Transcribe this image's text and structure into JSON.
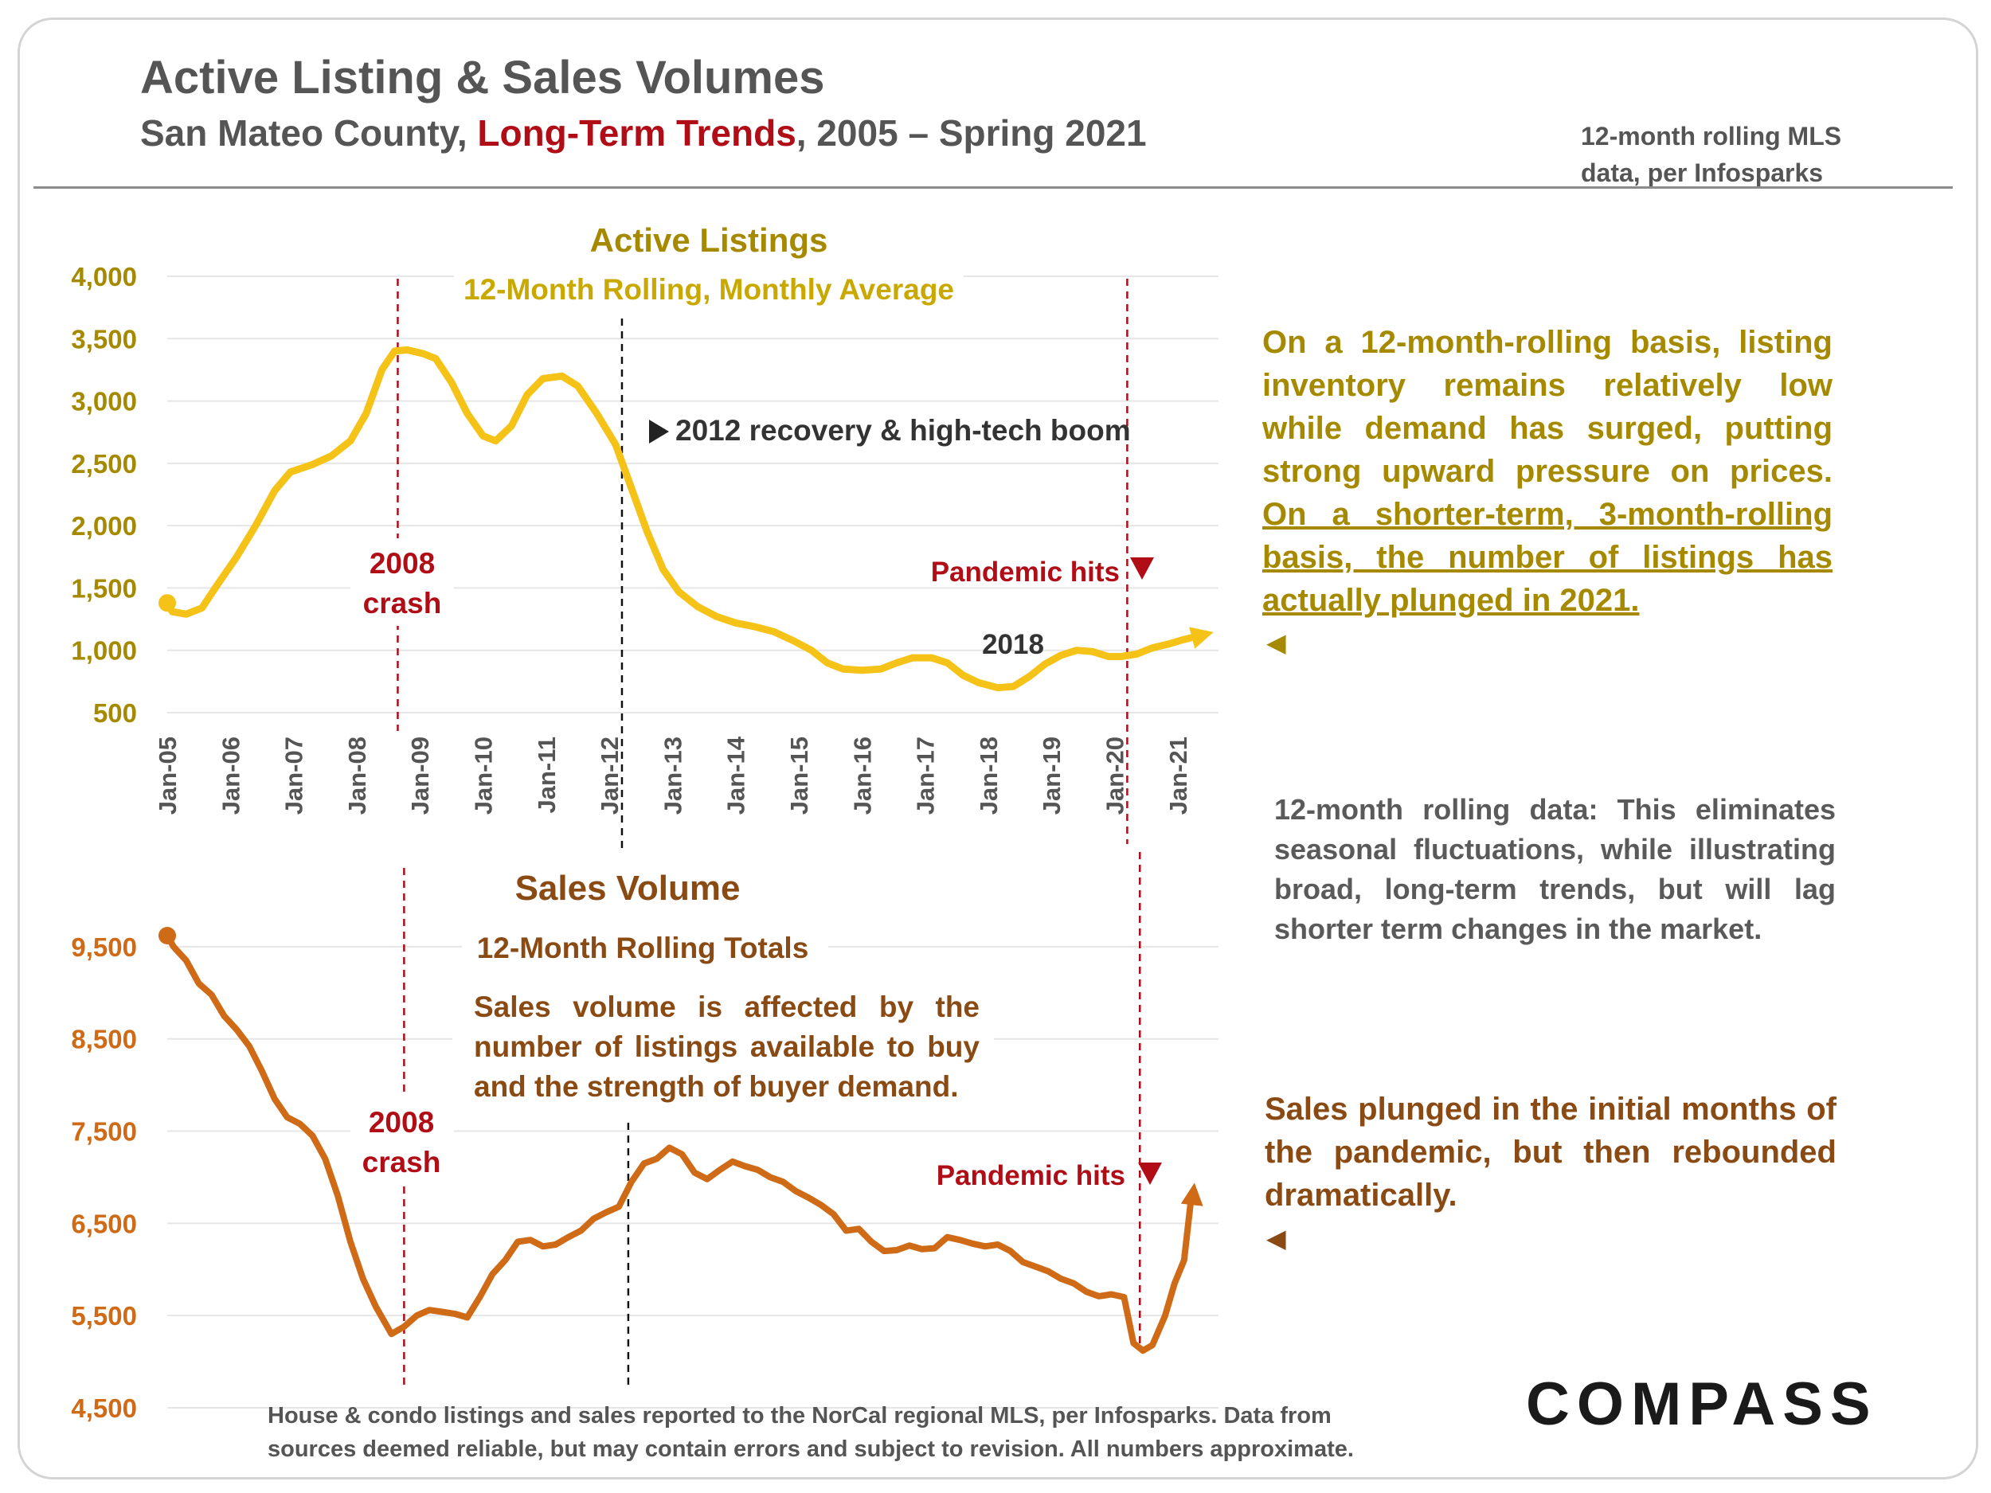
{
  "header": {
    "title": "Active Listing & Sales Volumes",
    "subtitle_pre": "San Mateo County, ",
    "subtitle_highlight": "Long-Term Trends",
    "subtitle_post": ", 2005 – Spring 2021",
    "source_note_line1": "12-month rolling MLS",
    "source_note_line2": "data, per Infosparks"
  },
  "notes": {
    "listings_plain": "On a 12-month-rolling basis, listing inventory remains relatively low while demand has surged, putting strong upward pressure on prices. ",
    "listings_underlined": "On a shorter-term, 3-month-rolling basis, the number of listings has actually plunged in 2021.",
    "rolling_data": "12-month rolling data: This eliminates seasonal fluctuations, while illustrating broad, long-term trends, but will lag shorter term changes in the market.",
    "sales": "Sales plunged in the initial months of the pandemic, but then rebounded dramatically.",
    "sales_explainer": "Sales volume is affected by the number of listings available to buy and the strength of buyer demand.",
    "footer": "House & condo listings and sales reported to the NorCal regional MLS, per Infosparks. Data from sources deemed reliable, but may contain errors and subject to revision. All numbers approximate."
  },
  "logo": {
    "text": "COMPASS"
  },
  "colors": {
    "listings_line": "#f5c218",
    "sales_line": "#cf6a17",
    "listings_text": "#a58a00",
    "sales_text": "#8a4a14",
    "crash_red": "#b00d17",
    "header_gray": "#555555"
  },
  "chart_data": [
    {
      "type": "line",
      "title": "Active Listings",
      "subtitle": "12-Month Rolling, Monthly Average",
      "series_name": "Active Listings",
      "ylim": [
        500,
        4000
      ],
      "yticks": [
        500,
        1000,
        1500,
        2000,
        2500,
        3000,
        3500,
        4000
      ],
      "ytick_labels": [
        "500",
        "1,000",
        "1,500",
        "2,000",
        "2,500",
        "3,000",
        "3,500",
        "4,000"
      ],
      "x_labels": [
        "Jan-05",
        "Jan-06",
        "Jan-07",
        "Jan-08",
        "Jan-09",
        "Jan-10",
        "Jan-11",
        "Jan-12",
        "Jan-13",
        "Jan-14",
        "Jan-15",
        "Jan-16",
        "Jan-17",
        "Jan-18",
        "Jan-19",
        "Jan-20",
        "Jan-21"
      ],
      "xlim": [
        2005.0,
        2021.33
      ],
      "points": [
        [
          2005.0,
          1380
        ],
        [
          2005.08,
          1310
        ],
        [
          2005.3,
          1290
        ],
        [
          2005.55,
          1340
        ],
        [
          2005.8,
          1530
        ],
        [
          2006.1,
          1750
        ],
        [
          2006.4,
          2000
        ],
        [
          2006.7,
          2280
        ],
        [
          2006.95,
          2430
        ],
        [
          2007.3,
          2490
        ],
        [
          2007.6,
          2560
        ],
        [
          2007.9,
          2680
        ],
        [
          2008.15,
          2900
        ],
        [
          2008.4,
          3250
        ],
        [
          2008.6,
          3400
        ],
        [
          2008.8,
          3410
        ],
        [
          2009.05,
          3380
        ],
        [
          2009.25,
          3340
        ],
        [
          2009.5,
          3150
        ],
        [
          2009.75,
          2900
        ],
        [
          2010.0,
          2720
        ],
        [
          2010.2,
          2680
        ],
        [
          2010.45,
          2800
        ],
        [
          2010.7,
          3050
        ],
        [
          2010.95,
          3180
        ],
        [
          2011.25,
          3200
        ],
        [
          2011.5,
          3120
        ],
        [
          2011.8,
          2900
        ],
        [
          2012.1,
          2650
        ],
        [
          2012.35,
          2300
        ],
        [
          2012.6,
          1950
        ],
        [
          2012.85,
          1650
        ],
        [
          2013.1,
          1470
        ],
        [
          2013.4,
          1350
        ],
        [
          2013.7,
          1270
        ],
        [
          2014.0,
          1220
        ],
        [
          2014.3,
          1190
        ],
        [
          2014.6,
          1150
        ],
        [
          2014.9,
          1080
        ],
        [
          2015.2,
          1000
        ],
        [
          2015.45,
          900
        ],
        [
          2015.7,
          850
        ],
        [
          2016.0,
          840
        ],
        [
          2016.3,
          850
        ],
        [
          2016.55,
          900
        ],
        [
          2016.8,
          940
        ],
        [
          2017.1,
          940
        ],
        [
          2017.35,
          900
        ],
        [
          2017.6,
          800
        ],
        [
          2017.85,
          740
        ],
        [
          2018.15,
          700
        ],
        [
          2018.4,
          710
        ],
        [
          2018.65,
          790
        ],
        [
          2018.9,
          890
        ],
        [
          2019.15,
          960
        ],
        [
          2019.4,
          1000
        ],
        [
          2019.65,
          990
        ],
        [
          2019.9,
          950
        ],
        [
          2020.1,
          950
        ],
        [
          2020.35,
          970
        ],
        [
          2020.6,
          1020
        ],
        [
          2020.85,
          1050
        ],
        [
          2021.05,
          1080
        ],
        [
          2021.2,
          1100
        ]
      ],
      "annotations": {
        "crash_label_line1": "2008",
        "crash_label_line2": "crash",
        "recovery_label": "2012 recovery & high-tech boom",
        "pandemic_label": "Pandemic hits",
        "year_label": "2018",
        "crash_x": 2008.65,
        "recovery_x": 2012.2,
        "pandemic_x": 2020.2
      }
    },
    {
      "type": "line",
      "title": "Sales Volume",
      "subtitle": "12-Month Rolling Totals",
      "series_name": "Sales Volume",
      "ylim": [
        4500,
        10000
      ],
      "yticks": [
        4500,
        5500,
        6500,
        7500,
        8500,
        9500
      ],
      "ytick_labels": [
        "4,500",
        "5,500",
        "6,500",
        "7,500",
        "8,500",
        "9,500"
      ],
      "xlim": [
        2005.0,
        2021.33
      ],
      "points": [
        [
          2005.0,
          9620
        ],
        [
          2005.1,
          9500
        ],
        [
          2005.3,
          9350
        ],
        [
          2005.5,
          9100
        ],
        [
          2005.7,
          8980
        ],
        [
          2005.9,
          8750
        ],
        [
          2006.1,
          8600
        ],
        [
          2006.3,
          8420
        ],
        [
          2006.5,
          8150
        ],
        [
          2006.7,
          7850
        ],
        [
          2006.9,
          7650
        ],
        [
          2007.1,
          7580
        ],
        [
          2007.3,
          7450
        ],
        [
          2007.5,
          7200
        ],
        [
          2007.7,
          6800
        ],
        [
          2007.9,
          6300
        ],
        [
          2008.1,
          5900
        ],
        [
          2008.3,
          5600
        ],
        [
          2008.55,
          5300
        ],
        [
          2008.75,
          5380
        ],
        [
          2008.95,
          5500
        ],
        [
          2009.15,
          5560
        ],
        [
          2009.35,
          5540
        ],
        [
          2009.55,
          5520
        ],
        [
          2009.75,
          5480
        ],
        [
          2009.95,
          5700
        ],
        [
          2010.15,
          5950
        ],
        [
          2010.35,
          6100
        ],
        [
          2010.55,
          6300
        ],
        [
          2010.75,
          6320
        ],
        [
          2010.95,
          6250
        ],
        [
          2011.15,
          6270
        ],
        [
          2011.35,
          6350
        ],
        [
          2011.55,
          6420
        ],
        [
          2011.75,
          6550
        ],
        [
          2011.95,
          6620
        ],
        [
          2012.15,
          6680
        ],
        [
          2012.35,
          6950
        ],
        [
          2012.55,
          7150
        ],
        [
          2012.75,
          7200
        ],
        [
          2012.95,
          7320
        ],
        [
          2013.15,
          7250
        ],
        [
          2013.35,
          7050
        ],
        [
          2013.55,
          6980
        ],
        [
          2013.75,
          7080
        ],
        [
          2013.95,
          7170
        ],
        [
          2014.15,
          7120
        ],
        [
          2014.35,
          7080
        ],
        [
          2014.55,
          7000
        ],
        [
          2014.75,
          6950
        ],
        [
          2014.95,
          6850
        ],
        [
          2015.15,
          6780
        ],
        [
          2015.35,
          6700
        ],
        [
          2015.55,
          6600
        ],
        [
          2015.75,
          6420
        ],
        [
          2015.95,
          6440
        ],
        [
          2016.15,
          6300
        ],
        [
          2016.35,
          6200
        ],
        [
          2016.55,
          6210
        ],
        [
          2016.75,
          6260
        ],
        [
          2016.95,
          6220
        ],
        [
          2017.15,
          6230
        ],
        [
          2017.35,
          6350
        ],
        [
          2017.55,
          6320
        ],
        [
          2017.75,
          6280
        ],
        [
          2017.95,
          6250
        ],
        [
          2018.15,
          6270
        ],
        [
          2018.35,
          6200
        ],
        [
          2018.55,
          6080
        ],
        [
          2018.75,
          6030
        ],
        [
          2018.95,
          5980
        ],
        [
          2019.15,
          5900
        ],
        [
          2019.35,
          5850
        ],
        [
          2019.55,
          5760
        ],
        [
          2019.75,
          5710
        ],
        [
          2019.95,
          5730
        ],
        [
          2020.15,
          5700
        ],
        [
          2020.3,
          5200
        ],
        [
          2020.45,
          5120
        ],
        [
          2020.6,
          5180
        ],
        [
          2020.8,
          5500
        ],
        [
          2020.95,
          5850
        ],
        [
          2021.1,
          6100
        ],
        [
          2021.2,
          6700
        ]
      ],
      "annotations": {
        "crash_label_line1": "2008",
        "crash_label_line2": "crash",
        "pandemic_label": "Pandemic hits",
        "crash_x": 2008.75,
        "recovery_x": 2012.3,
        "pandemic_x": 2020.4
      }
    }
  ]
}
